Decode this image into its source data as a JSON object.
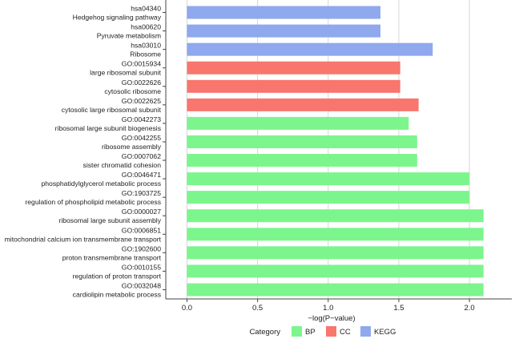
{
  "chart_data": {
    "type": "bar",
    "orientation": "horizontal",
    "title": "",
    "xlabel": "−log(P−value)",
    "ylabel": "",
    "xlim": [
      -0.15,
      2.3
    ],
    "xticks": [
      "0.0",
      "0.5",
      "1.0",
      "1.5",
      "2.0"
    ],
    "grid": true,
    "legend_position": "bottom",
    "legend_title": "Category",
    "categories": [
      {
        "name": "BP",
        "color": "#7CF58D"
      },
      {
        "name": "CC",
        "color": "#F8766D"
      },
      {
        "name": "KEGG",
        "color": "#8FA8EE"
      }
    ],
    "bars": [
      {
        "id": "hsa04340",
        "desc": "Hedgehog signaling pathway",
        "category": "KEGG",
        "value": 1.37
      },
      {
        "id": "hsa00620",
        "desc": "Pyruvate metabolism",
        "category": "KEGG",
        "value": 1.37
      },
      {
        "id": "hsa03010",
        "desc": "Ribosome",
        "category": "KEGG",
        "value": 1.74
      },
      {
        "id": "GO:0015934",
        "desc": "large ribosomal subunit",
        "category": "CC",
        "value": 1.51
      },
      {
        "id": "GO:0022626",
        "desc": "cytosolic ribosome",
        "category": "CC",
        "value": 1.51
      },
      {
        "id": "GO:0022625",
        "desc": "cytosolic large ribosomal subunit",
        "category": "CC",
        "value": 1.64
      },
      {
        "id": "GO:0042273",
        "desc": "ribosomal large subunit biogenesis",
        "category": "BP",
        "value": 1.57
      },
      {
        "id": "GO:0042255",
        "desc": "ribosome assembly",
        "category": "BP",
        "value": 1.63
      },
      {
        "id": "GO:0007062",
        "desc": "sister chromatid cohesion",
        "category": "BP",
        "value": 1.63
      },
      {
        "id": "GO:0046471",
        "desc": "phosphatidylglycerol metabolic process",
        "category": "BP",
        "value": 2.0
      },
      {
        "id": "GO:1903725",
        "desc": "regulation of phospholipid metabolic process",
        "category": "BP",
        "value": 2.0
      },
      {
        "id": "GO:0000027",
        "desc": "ribosomal large subunit assembly",
        "category": "BP",
        "value": 2.1
      },
      {
        "id": "GO:0006851",
        "desc": "mitochondrial calcium ion transmembrane transport",
        "category": "BP",
        "value": 2.1
      },
      {
        "id": "GO:1902600",
        "desc": "proton transmembrane transport",
        "category": "BP",
        "value": 2.1
      },
      {
        "id": "GO:0010155",
        "desc": "regulation of proton transport",
        "category": "BP",
        "value": 2.1
      },
      {
        "id": "GO:0032048",
        "desc": "cardiolipin metabolic process",
        "category": "BP",
        "value": 2.1
      }
    ]
  }
}
